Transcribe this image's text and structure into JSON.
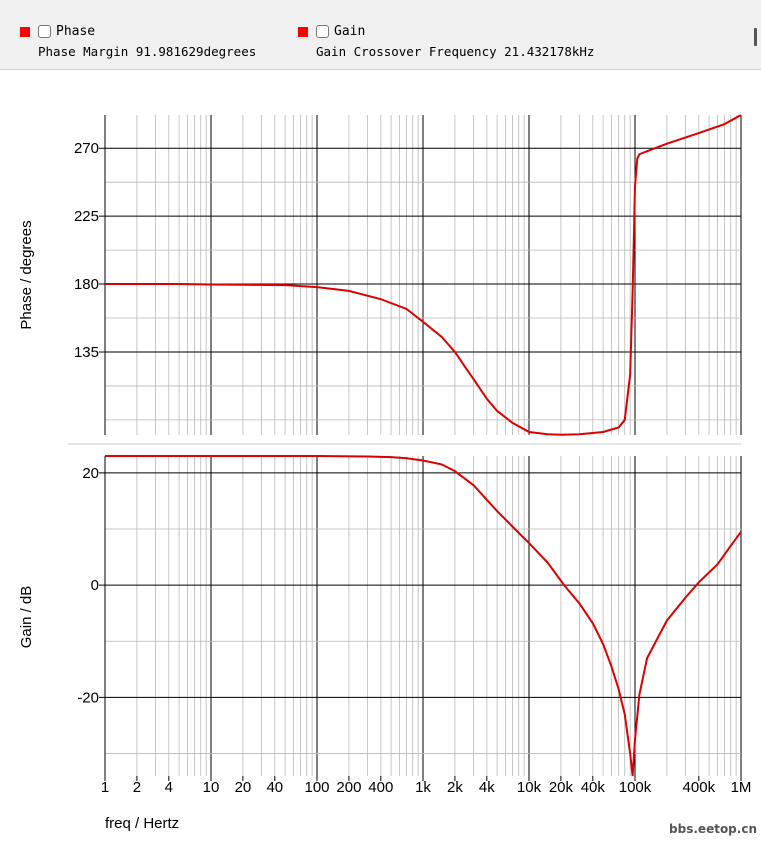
{
  "legend": {
    "phase": {
      "label": "Phase",
      "info": "Phase Margin 91.981629degrees",
      "color": "#ff0000"
    },
    "gain": {
      "label": "Gain",
      "info": "Gain Crossover Frequency 21.432178kHz",
      "color": "#ff0000"
    }
  },
  "watermark": "bbs.eetop.cn",
  "chart_data": {
    "type": "line",
    "x_scale": "log",
    "xlabel": "freq / Hertz",
    "xlim": [
      1,
      1000000
    ],
    "x_ticks": [
      {
        "v": 1,
        "label": "1"
      },
      {
        "v": 2,
        "label": "2"
      },
      {
        "v": 4,
        "label": "4"
      },
      {
        "v": 10,
        "label": "10"
      },
      {
        "v": 20,
        "label": "20"
      },
      {
        "v": 40,
        "label": "40"
      },
      {
        "v": 100,
        "label": "100"
      },
      {
        "v": 200,
        "label": "200"
      },
      {
        "v": 400,
        "label": "400"
      },
      {
        "v": 1000,
        "label": "1k"
      },
      {
        "v": 2000,
        "label": "2k"
      },
      {
        "v": 4000,
        "label": "4k"
      },
      {
        "v": 10000,
        "label": "10k"
      },
      {
        "v": 20000,
        "label": "20k"
      },
      {
        "v": 40000,
        "label": "40k"
      },
      {
        "v": 100000,
        "label": "100k"
      },
      {
        "v": 400000,
        "label": "400k"
      },
      {
        "v": 1000000,
        "label": "1M"
      }
    ],
    "grid": true,
    "color": "#dd0000",
    "panels": [
      {
        "id": "phase",
        "ylabel": "Phase / degrees",
        "ylim": [
          80,
          292
        ],
        "major_ticks": [
          135,
          180,
          225,
          270
        ],
        "minor_ticks": [
          90,
          112.5,
          157.5,
          202.5,
          247.5
        ],
        "series": [
          {
            "name": "Phase",
            "x": [
              1,
              5,
              10,
              50,
              100,
              200,
              400,
              700,
              1000,
              1500,
              2000,
              2500,
              3000,
              4000,
              5000,
              7000,
              10000,
              15000,
              20000,
              30000,
              50000,
              70000,
              80000,
              90000,
              95000,
              100000,
              105000,
              110000,
              130000,
              200000,
              400000,
              700000,
              1000000
            ],
            "y": [
              180,
              180,
              179.7,
              179.3,
              178,
              175.5,
              170,
              163.5,
              155,
              145,
              135,
              125,
              117,
              104,
              96,
              88,
              82,
              80.5,
              80.2,
              80.5,
              82,
              85,
              90,
              120,
              175,
              245,
              263,
              266,
              268,
              273,
              280,
              286,
              292
            ]
          }
        ]
      },
      {
        "id": "gain",
        "ylabel": "Gain / dB",
        "ylim": [
          -34,
          23
        ],
        "major_ticks": [
          -20,
          0,
          20
        ],
        "minor_ticks": [
          -30,
          -10,
          10
        ],
        "series": [
          {
            "name": "Gain",
            "x": [
              1,
              10,
              100,
              300,
              500,
              700,
              1000,
              1500,
              2000,
              3000,
              4000,
              5000,
              7000,
              10000,
              15000,
              21432,
              30000,
              40000,
              50000,
              60000,
              70000,
              80000,
              90000,
              95000,
              100000,
              110000,
              130000,
              200000,
              300000,
              400000,
              600000,
              800000,
              1000000
            ],
            "y": [
              23,
              23,
              23,
              22.9,
              22.8,
              22.6,
              22.2,
              21.5,
              20.3,
              17.8,
              15.2,
              13.2,
              10.4,
              7.5,
              4,
              0,
              -3.3,
              -6.8,
              -10.5,
              -14.5,
              -18.5,
              -23,
              -30,
              -34,
              -27.5,
              -19.5,
              -13,
              -6.3,
              -2.2,
              0.5,
              3.7,
              7,
              9.5
            ]
          }
        ]
      }
    ]
  }
}
